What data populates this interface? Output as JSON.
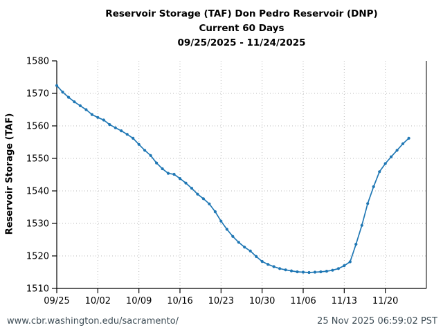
{
  "title": {
    "line1": "Reservoir Storage (TAF) Don Pedro Reservoir (DNP)",
    "line2": "Current 60 Days",
    "line3": "09/25/2025 - 11/24/2025"
  },
  "footer": {
    "url": "www.cbr.washington.edu/sacramento/",
    "timestamp": "25 Nov 2025 06:59:02 PST"
  },
  "colors": {
    "line": "#1f77b4",
    "axis": "#000000",
    "grid": "#b8b8b8",
    "footer_text": "#3d4c55"
  },
  "chart_data": {
    "type": "line",
    "title": "Reservoir Storage (TAF) Don Pedro Reservoir (DNP)",
    "subtitle": "Current 60 Days",
    "date_range": "09/25/2025 - 11/24/2025",
    "xlabel": "",
    "ylabel": "Reservoir Storage (TAF)",
    "ylim": [
      1510,
      1580
    ],
    "y_ticks": [
      1510,
      1520,
      1530,
      1540,
      1550,
      1560,
      1570,
      1580
    ],
    "x_tick_labels": [
      "09/25",
      "10/02",
      "10/09",
      "10/16",
      "10/23",
      "10/30",
      "11/06",
      "11/13",
      "11/20"
    ],
    "x_tick_days": [
      0,
      7,
      14,
      21,
      28,
      35,
      42,
      49,
      56
    ],
    "grid": true,
    "legend_position": "none",
    "marker": "circle",
    "line_color": "#1f77b4",
    "series": [
      {
        "name": "Reservoir Storage (TAF)",
        "dates": [
          "09/25",
          "09/26",
          "09/27",
          "09/28",
          "09/29",
          "09/30",
          "10/01",
          "10/02",
          "10/03",
          "10/04",
          "10/05",
          "10/06",
          "10/07",
          "10/08",
          "10/09",
          "10/10",
          "10/11",
          "10/12",
          "10/13",
          "10/14",
          "10/15",
          "10/16",
          "10/17",
          "10/18",
          "10/19",
          "10/20",
          "10/21",
          "10/22",
          "10/23",
          "10/24",
          "10/25",
          "10/26",
          "10/27",
          "10/28",
          "10/29",
          "10/30",
          "10/31",
          "11/01",
          "11/02",
          "11/03",
          "11/04",
          "11/05",
          "11/06",
          "11/07",
          "11/08",
          "11/09",
          "11/10",
          "11/11",
          "11/12",
          "11/13",
          "11/14",
          "11/15",
          "11/16",
          "11/17",
          "11/18",
          "11/19",
          "11/20",
          "11/21",
          "11/22",
          "11/23",
          "11/24"
        ],
        "values": [
          1572.4,
          1570.4,
          1568.8,
          1567.4,
          1566.2,
          1565.0,
          1563.5,
          1562.6,
          1561.8,
          1560.4,
          1559.4,
          1558.5,
          1557.4,
          1556.2,
          1554.3,
          1552.5,
          1550.9,
          1548.6,
          1546.8,
          1545.4,
          1545.1,
          1543.8,
          1542.4,
          1540.8,
          1539.0,
          1537.6,
          1536.0,
          1533.6,
          1530.7,
          1528.2,
          1526.0,
          1524.2,
          1522.7,
          1521.5,
          1519.8,
          1518.3,
          1517.4,
          1516.7,
          1516.1,
          1515.7,
          1515.4,
          1515.1,
          1515.0,
          1514.9,
          1515.0,
          1515.1,
          1515.3,
          1515.6,
          1516.1,
          1517.0,
          1518.2,
          1523.6,
          1529.4,
          1536.1,
          1541.3,
          1545.9,
          1548.4,
          1550.5,
          1552.5,
          1554.5,
          1556.2
        ]
      }
    ]
  }
}
